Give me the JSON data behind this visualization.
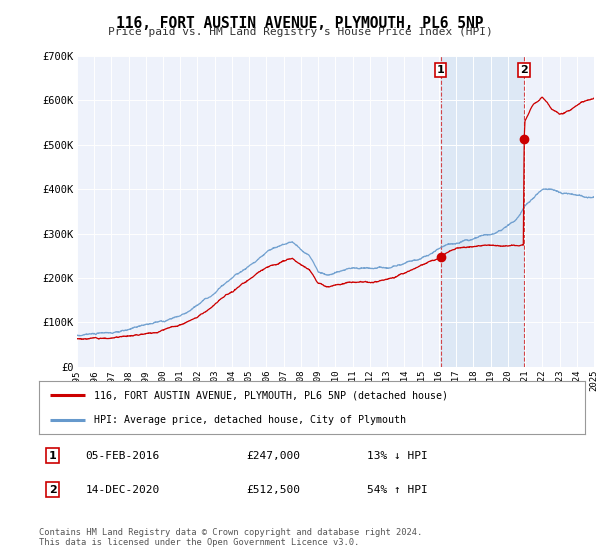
{
  "title": "116, FORT AUSTIN AVENUE, PLYMOUTH, PL6 5NP",
  "subtitle": "Price paid vs. HM Land Registry's House Price Index (HPI)",
  "legend_line1": "116, FORT AUSTIN AVENUE, PLYMOUTH, PL6 5NP (detached house)",
  "legend_line2": "HPI: Average price, detached house, City of Plymouth",
  "footnote1": "Contains HM Land Registry data © Crown copyright and database right 2024.",
  "footnote2": "This data is licensed under the Open Government Licence v3.0.",
  "marker1_date": "05-FEB-2016",
  "marker1_price": "£247,000",
  "marker1_hpi": "13% ↓ HPI",
  "marker2_date": "14-DEC-2020",
  "marker2_price": "£512,500",
  "marker2_hpi": "54% ↑ HPI",
  "red_color": "#cc0000",
  "blue_color": "#6699cc",
  "bg_color": "#eef2fb",
  "grid_color": "#cccccc",
  "span_color": "#dde8f5",
  "marker1_x": 2016.1,
  "marker1_y_red": 247000,
  "marker2_x": 2020.95,
  "marker2_y_red": 512500,
  "xmin": 1995,
  "xmax": 2025,
  "ymin": 0,
  "ymax": 700000,
  "yticks": [
    0,
    100000,
    200000,
    300000,
    400000,
    500000,
    600000,
    700000
  ],
  "ylabels": [
    "£0",
    "£100K",
    "£200K",
    "£300K",
    "£400K",
    "£500K",
    "£600K",
    "£700K"
  ]
}
